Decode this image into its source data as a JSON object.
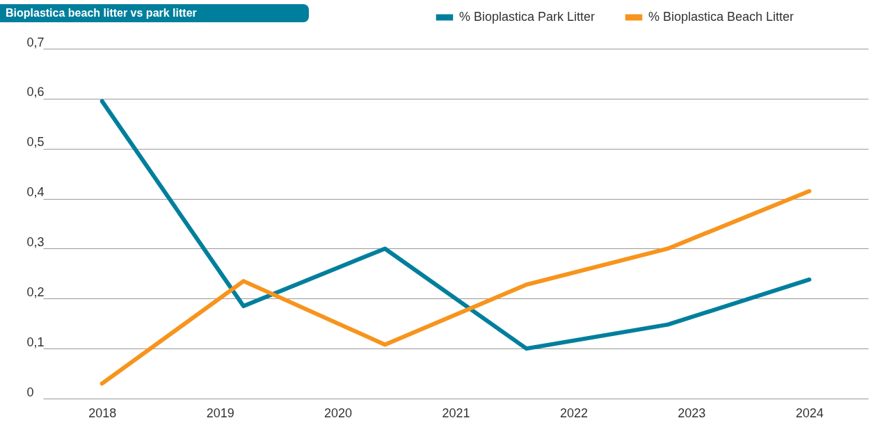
{
  "chart_data": {
    "type": "line",
    "title": "Bioplastica beach litter vs park litter",
    "xlim": [
      2017.5,
      2024.5
    ],
    "xticks": [
      2018,
      2019,
      2020,
      2021,
      2022,
      2023,
      2024
    ],
    "ylim": [
      0,
      0.7
    ],
    "yticks": [
      0,
      {
        "value": 0.1,
        "label": "0,1"
      },
      {
        "value": 0.2,
        "label": "0,2"
      },
      {
        "value": 0.3,
        "label": "0,3"
      },
      {
        "value": 0.4,
        "label": "0,4"
      },
      {
        "value": 0.5,
        "label": "0,5"
      },
      {
        "value": 0.6,
        "label": "0,6"
      },
      {
        "value": 0.7,
        "label": "0,7"
      }
    ],
    "grid": "y",
    "legend": "top right",
    "marker": "none",
    "line_style": "solid",
    "series": [
      {
        "name": "% Bioplastica Park Litter",
        "color": "#007f9c",
        "x": [
          2018,
          2019.2,
          2020.4,
          2021.6,
          2022.8,
          2024
        ],
        "values": [
          0.595,
          0.185,
          0.3,
          0.1,
          0.148,
          0.238
        ]
      },
      {
        "name": "% Bioplastica Beach Litter",
        "color": "#f7941d",
        "x": [
          2018,
          2019.2,
          2020.4,
          2021.6,
          2022.8,
          2024
        ],
        "values": [
          0.03,
          0.235,
          0.108,
          0.228,
          0.3,
          0.415
        ]
      }
    ]
  }
}
